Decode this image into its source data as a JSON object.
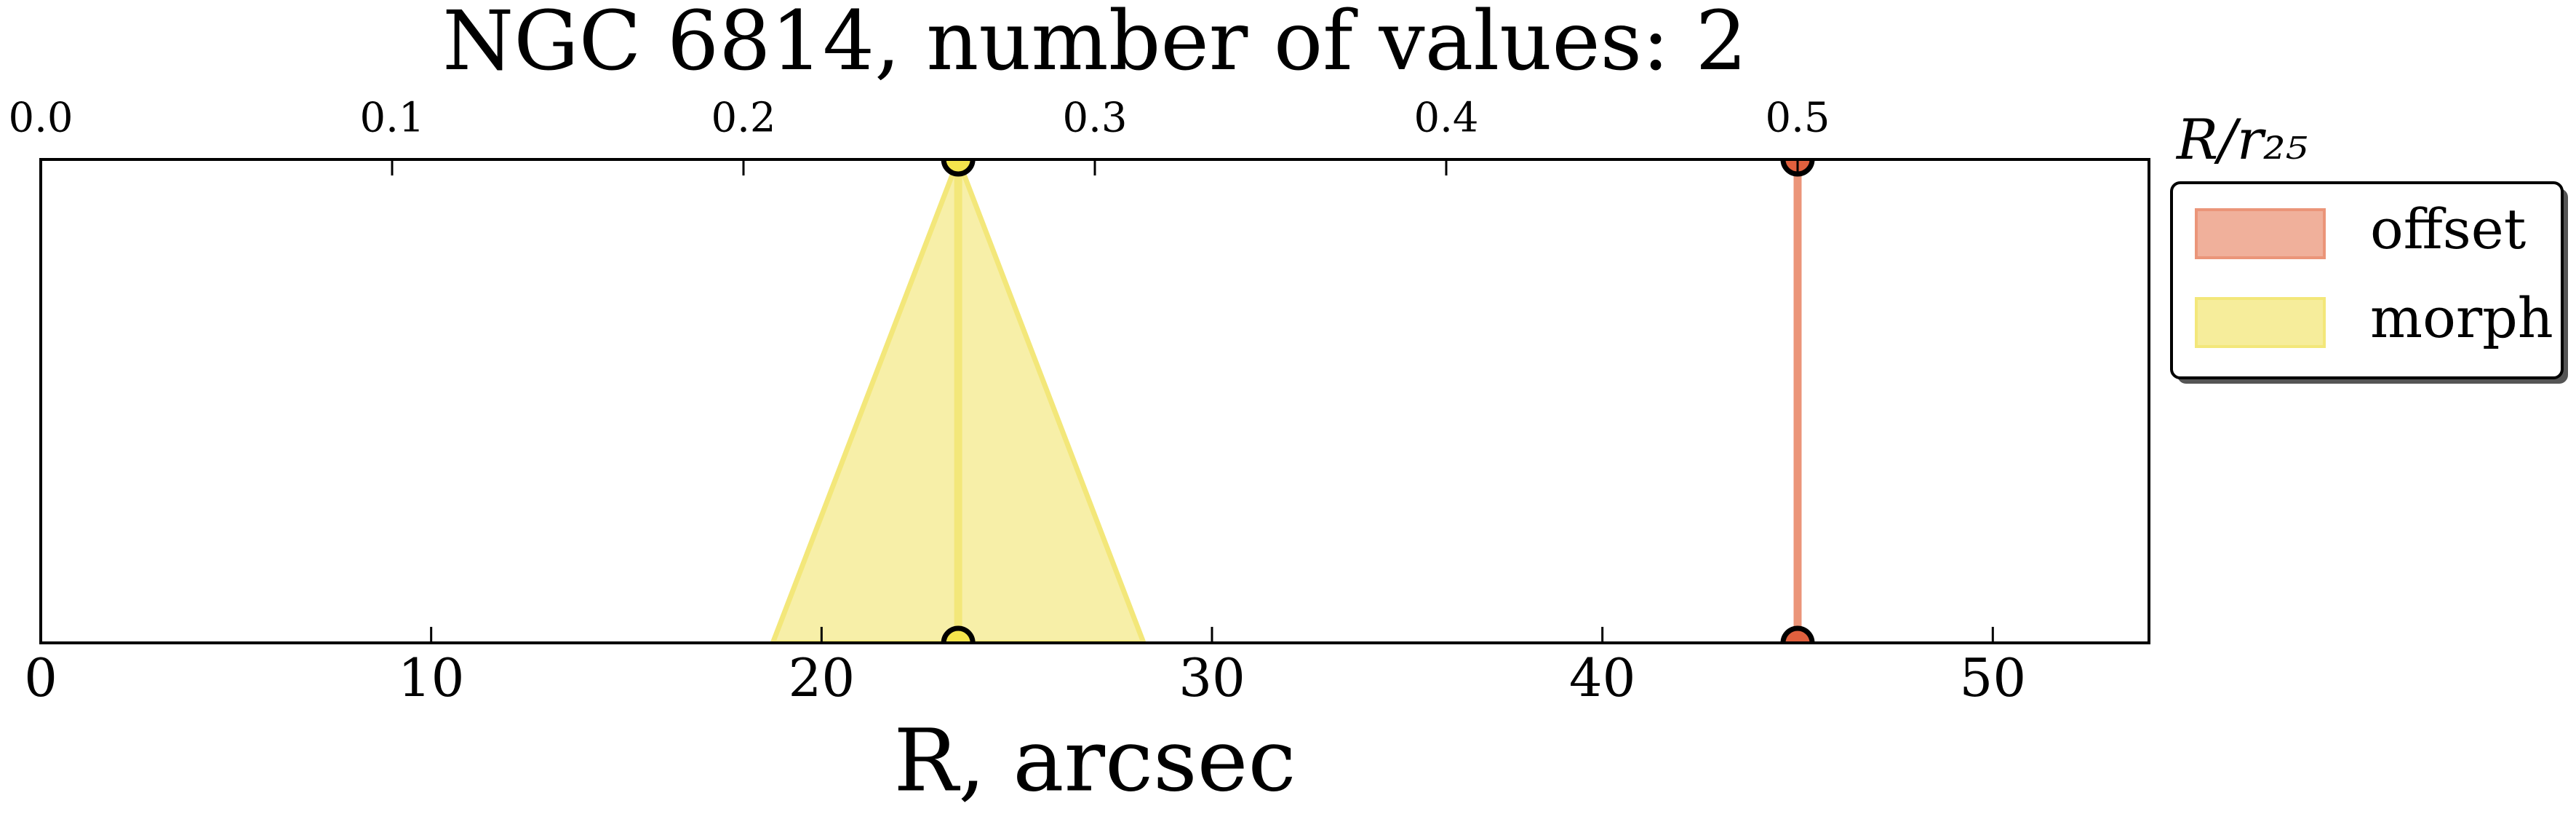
{
  "chart_data": {
    "type": "range",
    "title": "NGC 6814, number of values: 2",
    "xlabel": "R, arcsec",
    "x2label": "R/r₂₅",
    "xlim": [
      0,
      54
    ],
    "xticks": [
      0,
      10,
      20,
      30,
      40,
      50
    ],
    "x2lim": [
      0,
      0.6
    ],
    "x2ticks": [
      {
        "value": 0,
        "label": "0.0"
      },
      {
        "value": 0.1,
        "label": "0.1"
      },
      {
        "value": 0.2,
        "label": "0.2"
      },
      {
        "value": 0.3,
        "label": "0.3"
      },
      {
        "value": 0.4,
        "label": "0.4"
      },
      {
        "value": 0.5,
        "label": "0.5"
      }
    ],
    "legend": "outside right",
    "series": [
      {
        "name": "offset",
        "color": "#eb9579",
        "marker_color": "#e0603e",
        "x": 45
      },
      {
        "name": "morph",
        "color": "#f3e77a",
        "marker_color": "#f4e44c",
        "x": 23.5,
        "error": 4.75
      }
    ]
  }
}
